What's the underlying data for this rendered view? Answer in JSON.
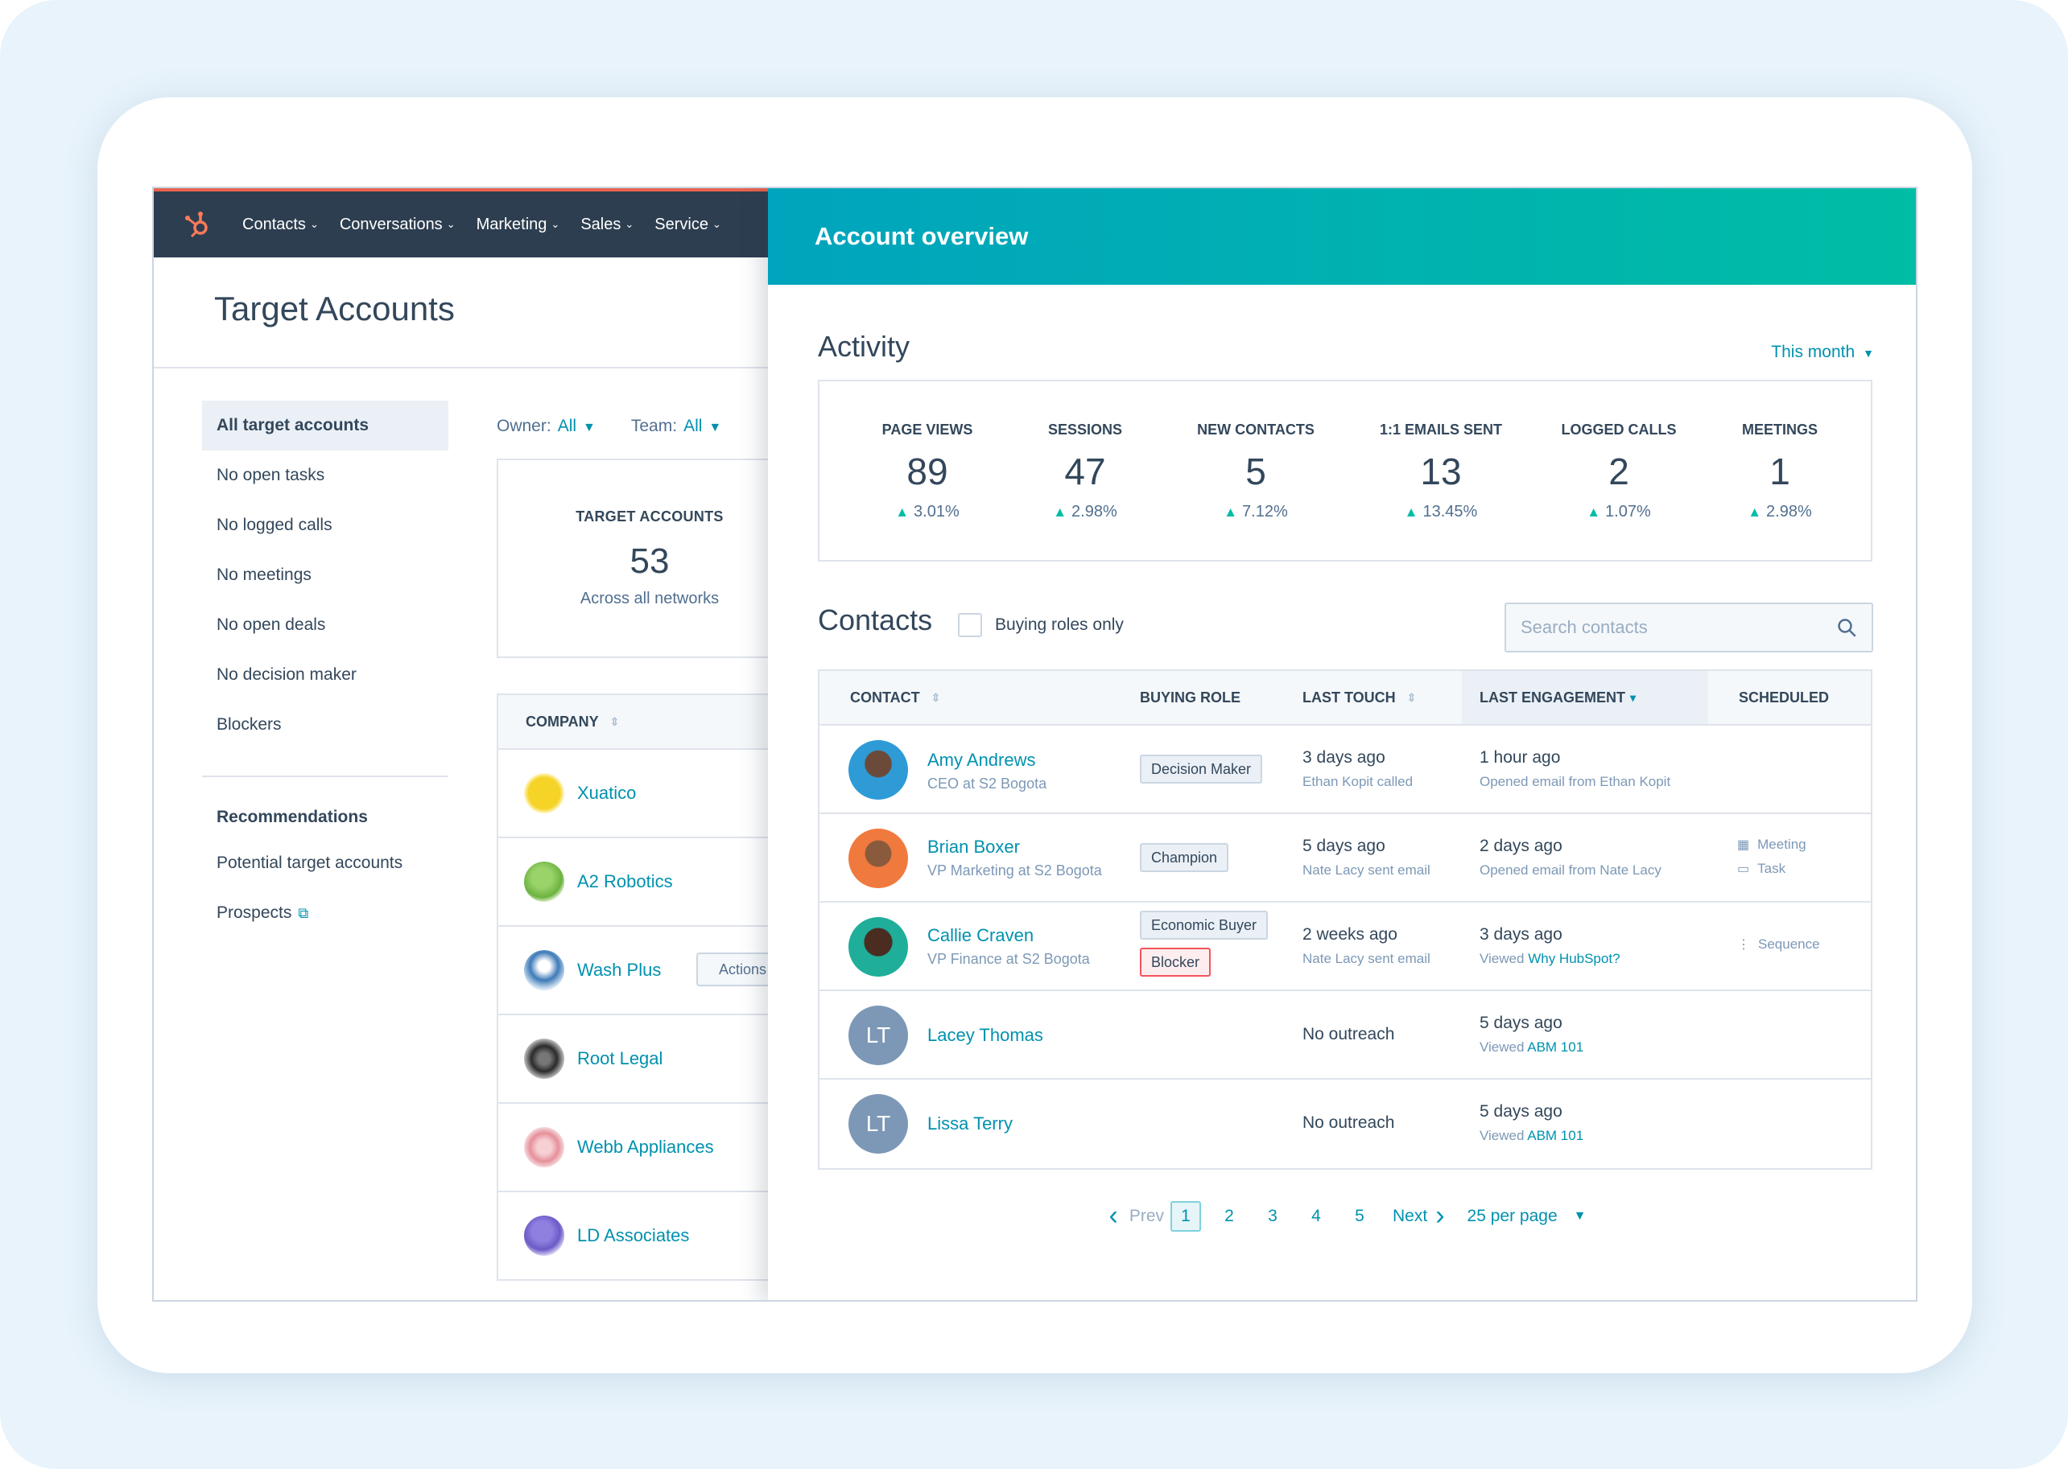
{
  "nav": {
    "items": [
      "Contacts",
      "Conversations",
      "Marketing",
      "Sales",
      "Service"
    ]
  },
  "left": {
    "page_title": "Target Accounts",
    "side_items": [
      "All target accounts",
      "No open tasks",
      "No logged calls",
      "No meetings",
      "No open deals",
      "No decision maker",
      "Blockers"
    ],
    "recommendations_heading": "Recommendations",
    "recommendation_items": [
      "Potential target accounts",
      "Prospects"
    ],
    "filters": {
      "owner_label": "Owner:",
      "owner_value": "All",
      "team_label": "Team:",
      "team_value": "All"
    },
    "summary": {
      "label": "TARGET ACCOUNTS",
      "value": "53",
      "sub": "Across all networks"
    },
    "company_header": "COMPANY",
    "companies": [
      {
        "name": "Xuatico",
        "color": "#f5d327"
      },
      {
        "name": "A2 Robotics",
        "color": "#6cb33f"
      },
      {
        "name": "Wash Plus",
        "color": "#3e7ab8"
      },
      {
        "name": "Root Legal",
        "color": "#2b2b2b"
      },
      {
        "name": "Webb Appliances",
        "color": "#e6909a"
      },
      {
        "name": "LD Associates",
        "color": "#6a5ac6"
      }
    ],
    "actions_label": "Actions"
  },
  "panel": {
    "title": "Account overview",
    "activity_title": "Activity",
    "period": "This month",
    "stats": [
      {
        "label": "PAGE VIEWS",
        "value": "89",
        "change": "3.01%"
      },
      {
        "label": "SESSIONS",
        "value": "47",
        "change": "2.98%"
      },
      {
        "label": "NEW CONTACTS",
        "value": "5",
        "change": "7.12%"
      },
      {
        "label": "1:1 EMAILS SENT",
        "value": "13",
        "change": "13.45%"
      },
      {
        "label": "LOGGED CALLS",
        "value": "2",
        "change": "1.07%"
      },
      {
        "label": "MEETINGS",
        "value": "1",
        "change": "2.98%"
      }
    ],
    "contacts_title": "Contacts",
    "buying_roles_label": "Buying roles only",
    "search_placeholder": "Search contacts",
    "columns": {
      "contact": "CONTACT",
      "buying_role": "BUYING ROLE",
      "last_touch": "LAST TOUCH",
      "last_engagement": "LAST ENGAGEMENT",
      "scheduled": "SCHEDULED"
    },
    "contacts": [
      {
        "name": "Amy Andrews",
        "title": "CEO at S2 Bogota",
        "roles": [
          "Decision Maker"
        ],
        "last_touch": "3 days ago",
        "last_touch_sub": "Ethan Kopit called",
        "last_engagement": "1 hour ago",
        "last_engagement_sub": "Opened email from Ethan Kopit",
        "engagement_link": "",
        "scheduled": []
      },
      {
        "name": "Brian Boxer",
        "title": "VP Marketing at S2 Bogota",
        "roles": [
          "Champion"
        ],
        "last_touch": "5 days ago",
        "last_touch_sub": "Nate Lacy sent email",
        "last_engagement": "2 days ago",
        "last_engagement_sub": "Opened email from Nate Lacy",
        "engagement_link": "",
        "scheduled": [
          "Meeting",
          "Task"
        ]
      },
      {
        "name": "Callie Craven",
        "title": "VP Finance at S2 Bogota",
        "roles": [
          "Economic Buyer",
          "Blocker"
        ],
        "last_touch": "2 weeks ago",
        "last_touch_sub": "Nate Lacy sent email",
        "last_engagement": "3 days ago",
        "last_engagement_sub": "Viewed",
        "engagement_link": "Why HubSpot?",
        "scheduled": [
          "Sequence"
        ]
      },
      {
        "name": "Lacey Thomas",
        "initials": "LT",
        "title": "",
        "roles": [],
        "last_touch": "No outreach",
        "last_touch_sub": "",
        "last_engagement": "5 days ago",
        "last_engagement_sub": "Viewed",
        "engagement_link": "ABM 101",
        "scheduled": []
      },
      {
        "name": "Lissa Terry",
        "initials": "LT",
        "title": "",
        "roles": [],
        "last_touch": "No outreach",
        "last_touch_sub": "",
        "last_engagement": "5 days ago",
        "last_engagement_sub": "Viewed",
        "engagement_link": "ABM 101",
        "scheduled": []
      }
    ],
    "pagination": {
      "prev": "Prev",
      "pages": [
        "1",
        "2",
        "3",
        "4",
        "5"
      ],
      "current": "1",
      "next": "Next",
      "per_page": "25 per page"
    }
  }
}
